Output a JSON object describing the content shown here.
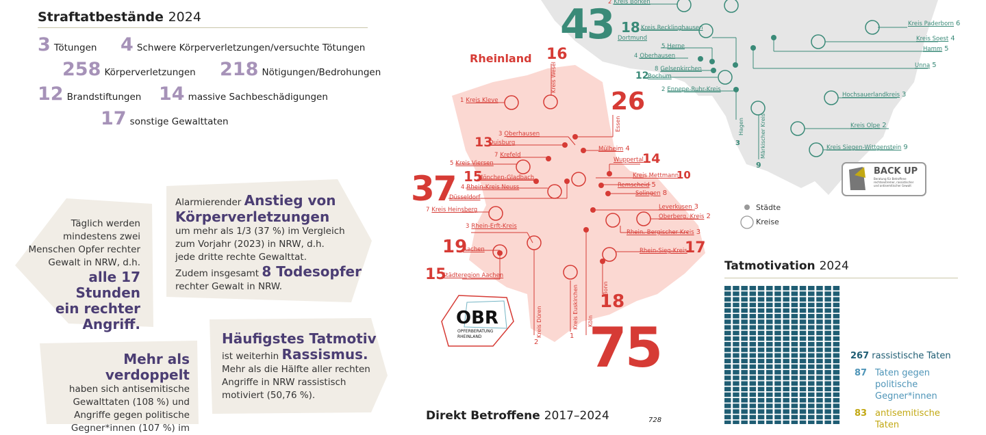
{
  "crimes": {
    "title": "Straftatbestände",
    "year": "2024",
    "items": [
      {
        "n": "3",
        "label": "Tötungen"
      },
      {
        "n": "4",
        "label": "Schwere Körperverletzungen/versuchte Tötungen"
      },
      {
        "n": "258",
        "label": "Körperverletzungen"
      },
      {
        "n": "218",
        "label": "Nötigungen/Bedrohungen"
      },
      {
        "n": "12",
        "label": "Brandstiftungen"
      },
      {
        "n": "14",
        "label": "massive Sachbeschädigungen"
      },
      {
        "n": "17",
        "label": "sonstige Gewalttaten"
      }
    ]
  },
  "card_daily": {
    "line1": "Täglich werden",
    "line2": "mindestens zwei",
    "line3": "Menschen Opfer rechter",
    "line4": "Gewalt in NRW, d.h.",
    "big1": "alle 17 Stunden",
    "big2": "ein rechter",
    "big3": "Angriff."
  },
  "card_rise": {
    "intro": "Alarmierender",
    "big1": "Anstieg von",
    "big2": "Körperverletzungen",
    "l1": "um mehr als 1/3 (37 %) im Vergleich",
    "l2": "zum Vorjahr (2023) in NRW, d.h.",
    "l3": "jede dritte rechte Gewalttat.",
    "l4pre": "Zudem insgesamt",
    "l4big": "8 Todesopfer",
    "l5": "rechter Gewalt in NRW."
  },
  "card_double": {
    "big": "Mehr als verdoppelt",
    "l1": "haben sich antisemitische",
    "l2": "Gewalttaten (108 %) und",
    "l3": "Angriffe gegen politische",
    "l4": "Gegner*innen (107 %) im"
  },
  "card_motive": {
    "big1": "Häufigstes Tatmotiv",
    "l1": "ist weiterhin",
    "big2": "Rassismus.",
    "l2": "Mehr als die Hälfte aller rechten",
    "l3": "Angriffe in NRW rassistisch",
    "l4": "motiviert (50,76 %)."
  },
  "map": {
    "region": "Rheinland",
    "colors": {
      "red": "#d63b35",
      "green": "#3a8a78",
      "pink": "#fbd8d2",
      "grey": "#e8e8e8"
    },
    "red_big": {
      "n43": "43",
      "n16": "16",
      "n26": "26",
      "n37": "37",
      "n75": "75",
      "n18": "18",
      "n17": "17",
      "n19": "19",
      "n15a": "15",
      "n15b": "15",
      "n13": "13",
      "n14": "14",
      "n10": "10"
    },
    "labels": {
      "kleve": "Kreis Kleve",
      "kleve_n": "1",
      "wesel": "Kreis Wesel",
      "essen": "Essen",
      "oberhausen": "Oberhausen",
      "oberhausen_n": "3",
      "duisburg": "Duisburg",
      "muelheim": "Mülheim",
      "muelheim_n": "4",
      "krefeld": "Krefeld",
      "krefeld_n": "7",
      "viersen": "Kreis Viersen",
      "viersen_n": "5",
      "wuppertal": "Wuppertal",
      "mg": "Mönchen-Gladbach",
      "mettmann": "Kreis Mettmann",
      "neuss": "Rhein-Kreis Neuss",
      "neuss_n": "4",
      "remscheid": "Remscheid",
      "remscheid_n": "5",
      "solingen": "Solingen",
      "solingen_n": "8",
      "duesseldorf": "Düsseldorf",
      "heinsberg": "Kreis Heinsberg",
      "heinsberg_n": "7",
      "leverkusen": "Leverkusen",
      "leverkusen_n": "3",
      "oberberg": "Oberberg. Kreis",
      "oberberg_n": "2",
      "rheinerft": "Rhein-Erft-Kreis",
      "rheinerft_n": "3",
      "rbk": "Rhein.-Bergischer Kreis",
      "rbk_n": "3",
      "aachen": "Aachen",
      "rheinsieg": "Rhein-Sieg-Kreis",
      "staedteregion": "Städteregion Aachen",
      "bonn": "Bonn",
      "dueren": "Kreis Düren",
      "dueren_n": "2",
      "euskirchen": "Kreis Euskirchen",
      "euskirchen_n": "1",
      "koeln": "Köln"
    },
    "green": {
      "borken": "Kreis Borken",
      "borken_n": "2",
      "recklinghausen": "Kreis Recklinghausen",
      "recklinghausen_n": "18",
      "dortmund": "Dortmund",
      "herne": "Herne",
      "herne_n": "5",
      "oberhausen": "Oberhausen",
      "oberhausen_n": "4",
      "gelsenkirchen": "Gelsenkirchen",
      "gelsenkirchen_n": "8",
      "bochum": "Bochum",
      "bochum_n": "12",
      "enneperuhr": "Ennepe-Ruhr-Kreis",
      "enneperuhr_n": "2",
      "paderborn": "Kreis Paderborn",
      "paderborn_n": "6",
      "soest": "Kreis Soest",
      "soest_n": "4",
      "hamm": "Hamm",
      "hamm_n": "5",
      "unna": "Unna",
      "unna_n": "5",
      "hochsauerland": "Hochsauerlandkreis",
      "hochsauerland_n": "3",
      "olpe": "Kreis Olpe",
      "olpe_n": "2",
      "siegen": "Kreis Siegen-Wittgenstein",
      "siegen_n": "9",
      "hagen": "Hagen",
      "hagen_n": "3",
      "maerkisch": "Märkischer Kreis",
      "maerkisch_n": "9"
    },
    "legend": {
      "cities": "Städte",
      "districts": "Kreise"
    },
    "obr": {
      "short": "OBR",
      "l1": "OPFERBERATUNG",
      "l2": "RHEINLAND"
    },
    "backup": {
      "title": "BACK UP",
      "sub1": "Beratung für Betroffene",
      "sub2": "rechtsextremer, rassistischer",
      "sub3": "und antisemitischer Gewalt"
    }
  },
  "direkt": {
    "title": "Direkt Betroffene",
    "years": "2017–2024",
    "val": "728"
  },
  "tatmotivation": {
    "title": "Tatmotivation",
    "year": "2024",
    "items": [
      {
        "n": "267",
        "label": "rassistische Taten",
        "color": "#1f5d73"
      },
      {
        "n": "87",
        "label1": "Taten gegen",
        "label2": "politische",
        "label3": "Gegner*innen",
        "color": "#4f95b8"
      },
      {
        "n": "83",
        "label1": "antisemitische",
        "label2": "Taten",
        "color": "#c2a813"
      }
    ]
  }
}
